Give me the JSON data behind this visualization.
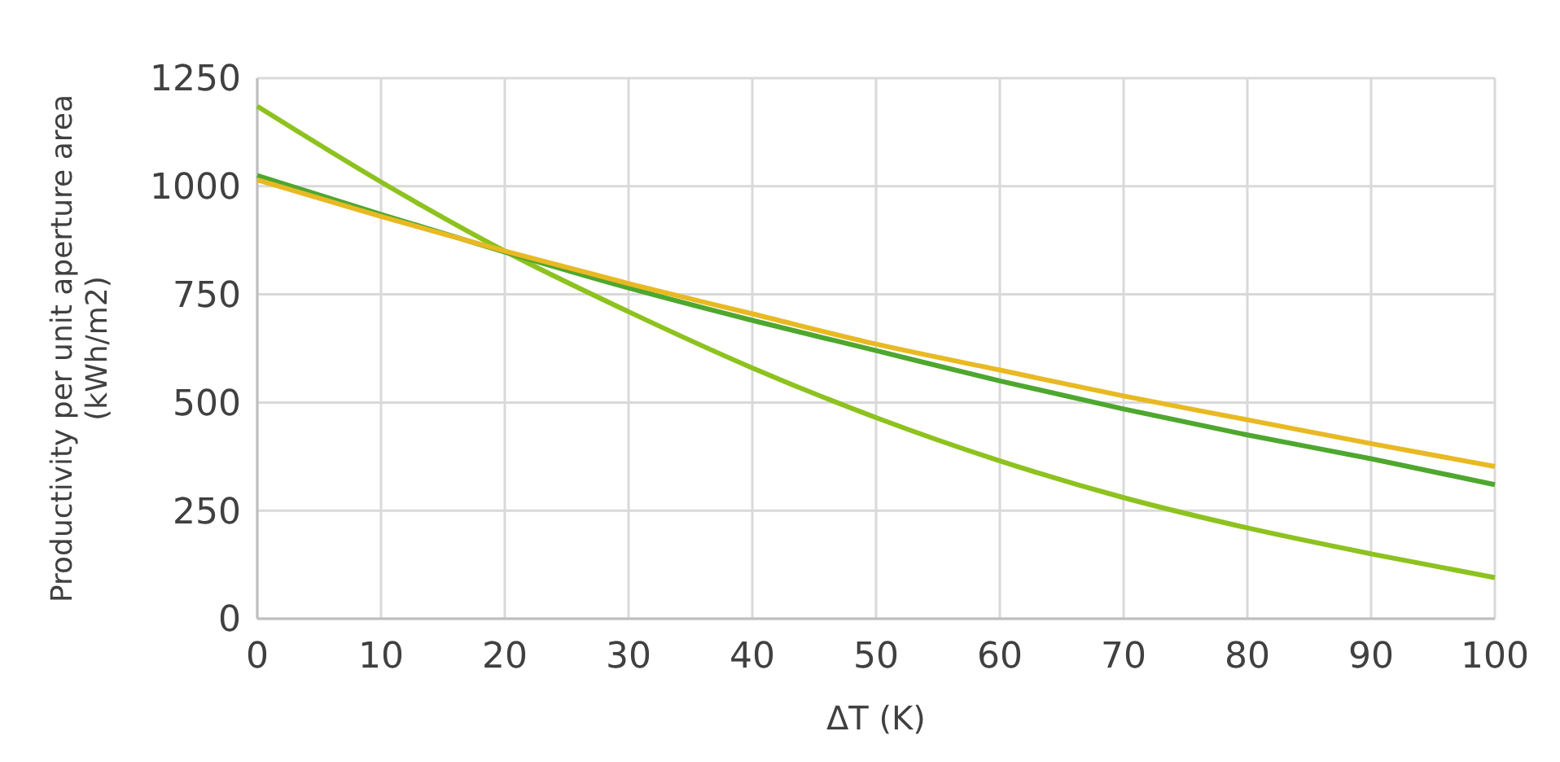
{
  "chart_data": {
    "type": "line",
    "xlabel": "ΔT (K)",
    "ylabel": "Productivity per unit aperture area (kWh/m2)",
    "x": [
      0,
      10,
      20,
      30,
      40,
      50,
      60,
      70,
      80,
      90,
      100
    ],
    "series": [
      {
        "color": "#8dc21f",
        "values": [
          1185,
          1010,
          850,
          710,
          580,
          465,
          365,
          280,
          210,
          150,
          95
        ]
      },
      {
        "color": "#4ea72e",
        "values": [
          1025,
          935,
          848,
          765,
          690,
          620,
          550,
          485,
          425,
          370,
          310
        ]
      },
      {
        "color": "#e8b923",
        "values": [
          1015,
          930,
          850,
          775,
          705,
          635,
          575,
          515,
          460,
          405,
          352
        ]
      }
    ],
    "xlim": [
      0,
      100
    ],
    "xticks": [
      0,
      10,
      20,
      30,
      40,
      50,
      60,
      70,
      80,
      90,
      100
    ],
    "ylim": [
      0,
      1250
    ],
    "yticks": [
      0,
      250,
      500,
      750,
      1000,
      1250
    ],
    "grid": true,
    "marker": "none",
    "line_style": "solid"
  }
}
